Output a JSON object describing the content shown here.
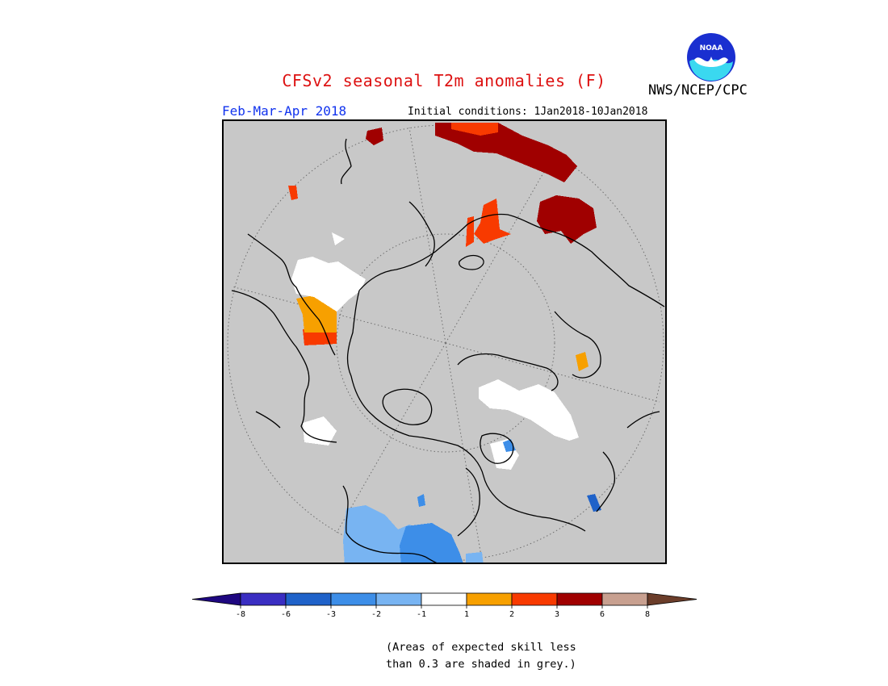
{
  "header": {
    "title": "CFSv2 seasonal T2m anomalies (F)",
    "organization": "NWS/NCEP/CPC",
    "logo_text": "NOAA",
    "season_label": "Feb-Mar-Apr 2018",
    "initial_conditions": "Initial conditions: 1Jan2018-10Jan2018"
  },
  "colors": {
    "title": "#dd1111",
    "season": "#1133ee",
    "background_grey": "#c8c8c8"
  },
  "legend": {
    "min_arrow_color": "#1e0780",
    "max_arrow_color": "#6b3d2a",
    "bins": [
      {
        "color": "#3a2ec2"
      },
      {
        "color": "#1f62c9"
      },
      {
        "color": "#3d8ee8"
      },
      {
        "color": "#78b4f2"
      },
      {
        "color": "#ffffff"
      },
      {
        "color": "#f7a000"
      },
      {
        "color": "#f83a00"
      },
      {
        "color": "#a00000"
      },
      {
        "color": "#c8a090"
      }
    ],
    "ticks": [
      "-8",
      "-6",
      "-3",
      "-2",
      "-1",
      "1",
      "2",
      "3",
      "6",
      "8"
    ]
  },
  "footnote": {
    "line1": "(Areas of expected skill less",
    "line2": "than 0.3 are shaded in grey.)"
  }
}
